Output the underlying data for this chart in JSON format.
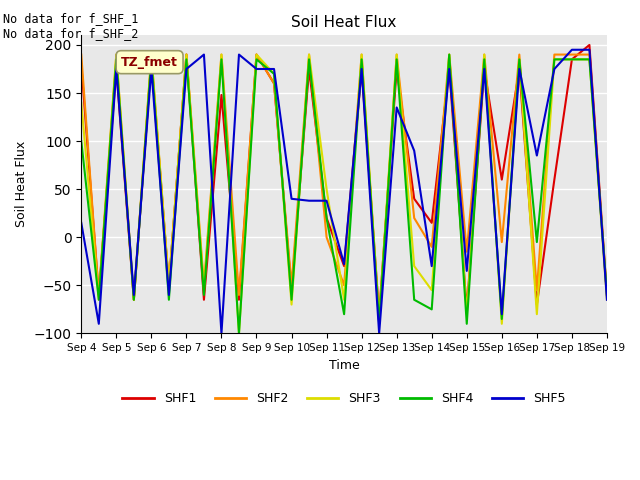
{
  "title": "Soil Heat Flux",
  "xlabel": "Time",
  "ylabel": "Soil Heat Flux",
  "ylim": [
    -100,
    210
  ],
  "yticks": [
    -100,
    -50,
    0,
    50,
    100,
    150,
    200
  ],
  "annotation_text": "No data for f_SHF_1\nNo data for f_SHF_2",
  "legend_box_text": "TZ_fmet",
  "legend_box_color": "#ffffcc",
  "legend_box_border": "#999966",
  "background_color": "#e8e8e8",
  "plot_bg_color": "#e8e8e8",
  "series_colors": {
    "SHF1": "#dd0000",
    "SHF2": "#ff8800",
    "SHF3": "#dddd00",
    "SHF4": "#00bb00",
    "SHF5": "#0000cc"
  },
  "x_labels": [
    "Sep 4",
    "Sep 5",
    "Sep 6",
    "Sep 7",
    "Sep 8",
    "Sep 9",
    "Sep 10",
    "Sep 11",
    "Sep 12",
    "Sep 13",
    "Sep 14",
    "Sep 15",
    "Sep 16",
    "Sep 17",
    "Sep 18",
    "Sep 19"
  ],
  "shf1_x": [
    0,
    0.5,
    1,
    1.5,
    2,
    2.5,
    3,
    3.5,
    4,
    4.5,
    5,
    5.5,
    6,
    6.5,
    7,
    7.5,
    8,
    8.5,
    9,
    9.5,
    10,
    10.5,
    11,
    11.5,
    12,
    12.5,
    13,
    13.5,
    14,
    14.5,
    15
  ],
  "shf1_y": [
    180,
    -60,
    175,
    -65,
    185,
    -50,
    190,
    -65,
    148,
    -65,
    190,
    160,
    -55,
    175,
    20,
    -30,
    175,
    -80,
    175,
    40,
    15,
    175,
    -75,
    175,
    60,
    175,
    -70,
    60,
    185,
    200,
    -60
  ],
  "shf2_x": [
    0,
    0.5,
    1,
    1.5,
    2,
    2.5,
    3,
    3.5,
    4,
    4.5,
    5,
    5.5,
    6,
    6.5,
    7,
    7.5,
    8,
    8.5,
    9,
    9.5,
    10,
    10.5,
    11,
    11.5,
    12,
    12.5,
    13,
    13.5,
    14,
    14.5,
    15
  ],
  "shf2_y": [
    190,
    -60,
    190,
    -65,
    190,
    -50,
    190,
    -50,
    190,
    -60,
    190,
    160,
    -50,
    190,
    0,
    -50,
    190,
    -90,
    190,
    20,
    -10,
    190,
    -15,
    190,
    -5,
    190,
    -55,
    190,
    190,
    190,
    -60
  ],
  "shf3_x": [
    0,
    0.5,
    1,
    1.5,
    2,
    2.5,
    3,
    3.5,
    4,
    4.5,
    5,
    5.5,
    6,
    6.5,
    7,
    7.5,
    8,
    8.5,
    9,
    9.5,
    10,
    10.5,
    11,
    11.5,
    12,
    12.5,
    13,
    13.5,
    14,
    14.5,
    15
  ],
  "shf3_y": [
    140,
    -65,
    190,
    -65,
    190,
    -50,
    190,
    -55,
    190,
    -100,
    190,
    170,
    -70,
    190,
    50,
    -65,
    190,
    -85,
    190,
    -30,
    -55,
    190,
    -80,
    190,
    -90,
    185,
    -80,
    185,
    185,
    185,
    -65
  ],
  "shf4_x": [
    0,
    0.5,
    1,
    1.5,
    2,
    2.5,
    3,
    3.5,
    4,
    4.5,
    5,
    5.5,
    6,
    6.5,
    7,
    7.5,
    8,
    8.5,
    9,
    9.5,
    10,
    10.5,
    11,
    11.5,
    12,
    12.5,
    13,
    13.5,
    14,
    14.5,
    15
  ],
  "shf4_y": [
    100,
    -65,
    185,
    -65,
    185,
    -65,
    185,
    -60,
    185,
    -100,
    185,
    170,
    -65,
    185,
    20,
    -80,
    185,
    -90,
    185,
    -65,
    -75,
    190,
    -90,
    185,
    -85,
    185,
    -5,
    185,
    185,
    185,
    -60
  ],
  "shf5_x": [
    0,
    0.5,
    1,
    1.5,
    2,
    2.5,
    3,
    3.5,
    4,
    4.5,
    5,
    5.5,
    6,
    6.5,
    7,
    7.5,
    8,
    8.5,
    9,
    9.5,
    10,
    10.5,
    11,
    11.5,
    12,
    12.5,
    13,
    13.5,
    14,
    14.5,
    15
  ],
  "shf5_y": [
    15,
    -90,
    175,
    -60,
    175,
    -60,
    175,
    190,
    -100,
    190,
    175,
    175,
    40,
    38,
    38,
    -28,
    175,
    -100,
    135,
    90,
    -30,
    175,
    -35,
    175,
    -80,
    175,
    85,
    175,
    195,
    195,
    -65
  ],
  "figsize": [
    6.4,
    4.8
  ],
  "dpi": 100
}
